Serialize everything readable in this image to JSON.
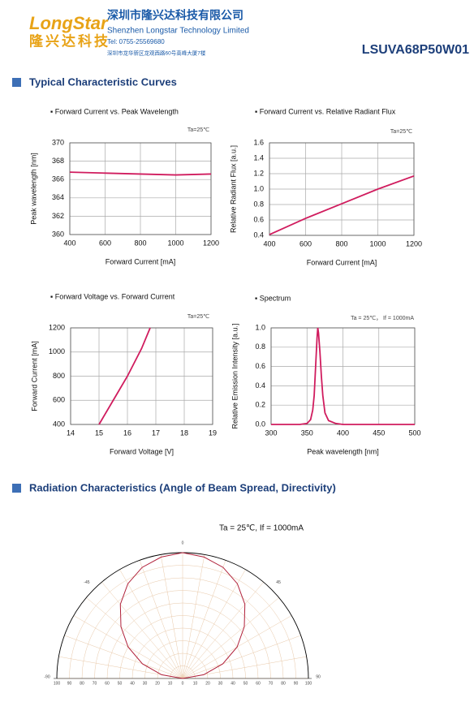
{
  "header": {
    "logo": "LongStar",
    "logo_cn": "隆兴达科技",
    "company_cn": "深圳市隆兴达科技有限公司",
    "company_en": "Shenzhen Longstar Technology Limited",
    "tel": "Tel: 0755-25569680",
    "address": "深圳市龙华新区龙观西路60号高峰大厦7楼",
    "part_number": "LSUVA68P50W01"
  },
  "sections": [
    "Typical Characteristic Curves",
    "Radiation Characteristics (Angle of Beam Spread, Directivity)"
  ],
  "chart_data": [
    {
      "type": "line",
      "title": "▪ Forward Current vs. Peak Wavelength",
      "annotation": "Ta=25℃",
      "xlabel": "Forward Current [mA]",
      "ylabel": "Peak wavelength [nm]",
      "x": [
        400,
        600,
        800,
        1000,
        1200
      ],
      "values": [
        366.8,
        366.7,
        366.6,
        366.5,
        366.6
      ],
      "color": "#d01c5e",
      "xlim": [
        400,
        1200
      ],
      "xticks": [
        400,
        600,
        800,
        1000,
        1200
      ],
      "ylim": [
        360,
        370
      ],
      "yticks": [
        360,
        362,
        364,
        366,
        368,
        370
      ],
      "grid": true
    },
    {
      "type": "line",
      "title": "▪ Forward Current vs. Relative Radiant Flux",
      "annotation": "Ta=25℃",
      "xlabel": "Forward Current [mA]",
      "ylabel": "Relative Radiant Flux [a.u.]",
      "x": [
        400,
        600,
        800,
        1000,
        1200
      ],
      "values": [
        0.41,
        0.62,
        0.81,
        1.0,
        1.17
      ],
      "color": "#d01c5e",
      "xlim": [
        400,
        1200
      ],
      "xticks": [
        400,
        600,
        800,
        1000,
        1200
      ],
      "ylim": [
        0.4,
        1.6
      ],
      "yticks": [
        0.4,
        0.6,
        0.8,
        {
          "value": 1,
          "label": "1.0"
        },
        1.2,
        1.4,
        1.6
      ],
      "grid": true
    },
    {
      "type": "line",
      "title": "▪ Forward Voltage vs. Forward Current",
      "annotation": "Ta=25℃",
      "xlabel": "Forward Voltage [V]",
      "ylabel": "Forward Current [mA]",
      "x": [
        15.0,
        15.5,
        16.0,
        16.5,
        16.8
      ],
      "values": [
        400,
        600,
        800,
        1030,
        1200
      ],
      "color": "#d01c5e",
      "xlim": [
        14,
        19
      ],
      "xticks": [
        14,
        15,
        16,
        17,
        18,
        19
      ],
      "ylim": [
        400,
        1200
      ],
      "yticks": [
        400,
        600,
        800,
        1000,
        1200
      ],
      "grid": true
    },
    {
      "type": "line",
      "title": "▪ Spectrum",
      "annotation": "Ta = 25℃， If = 1000mA",
      "xlabel": "Peak wavelength [nm]",
      "ylabel": "Relative Emission Intensity [a.u.]",
      "x": [
        300,
        340,
        350,
        355,
        358,
        360,
        362,
        364,
        365,
        366,
        368,
        370,
        372,
        375,
        380,
        390,
        400,
        450,
        500
      ],
      "values": [
        0,
        0,
        0.01,
        0.05,
        0.15,
        0.3,
        0.6,
        0.9,
        1.0,
        0.95,
        0.75,
        0.5,
        0.3,
        0.12,
        0.04,
        0.01,
        0,
        0,
        0
      ],
      "color": "#d01c5e",
      "xlim": [
        300,
        500
      ],
      "xticks": [
        300,
        350,
        400,
        450,
        500
      ],
      "ylim": [
        0,
        1
      ],
      "yticks": [
        {
          "value": 0,
          "label": "0.0"
        },
        0.2,
        0.4,
        0.6,
        0.8,
        {
          "value": 1,
          "label": "1.0"
        }
      ],
      "grid": true
    },
    {
      "type": "polar",
      "title": "Ta = 25℃, If = 1000mA",
      "angles": [
        -90,
        -80,
        -70,
        -60,
        -50,
        -40,
        -30,
        -20,
        -10,
        0,
        10,
        20,
        30,
        40,
        50,
        60,
        70,
        80,
        90
      ],
      "values": [
        0,
        17,
        34,
        50,
        64,
        77,
        87,
        94,
        98,
        100,
        98,
        94,
        87,
        77,
        64,
        50,
        34,
        17,
        0
      ],
      "color": "#b0203a",
      "rlim": [
        0,
        100
      ],
      "rticks": [
        0,
        10,
        20,
        30,
        40,
        50,
        60,
        70,
        80,
        90,
        100
      ],
      "angle_ticks": [
        -90,
        -45,
        0,
        45,
        90
      ]
    }
  ]
}
